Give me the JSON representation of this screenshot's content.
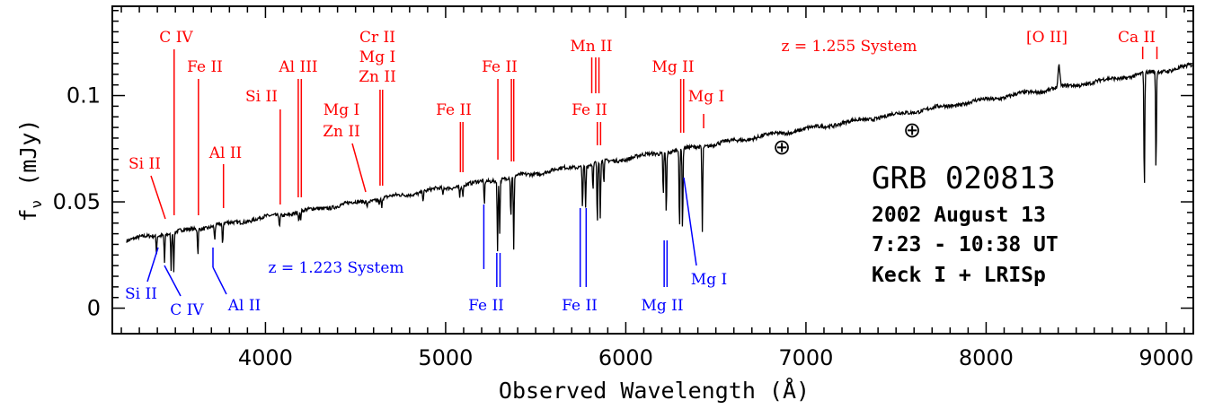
{
  "chart_data": {
    "type": "line",
    "xlabel": "Observed Wavelength (Å)",
    "ylabel": "f_ν (mJy)",
    "ylabel_main": "f",
    "ylabel_sub": "ν",
    "ylabel_unit": " (mJy)",
    "xlim": [
      3150,
      9150
    ],
    "ylim": [
      -0.012,
      0.142
    ],
    "x_ticks": [
      4000,
      5000,
      6000,
      7000,
      8000,
      9000
    ],
    "y_ticks": [
      {
        "value": 0,
        "label": "0"
      },
      {
        "value": 0.05,
        "label": "0.05"
      },
      {
        "value": 0.1,
        "label": "0.1"
      }
    ],
    "grid": false,
    "continuum": [
      [
        3230,
        0.032
      ],
      [
        9150,
        0.114
      ]
    ],
    "absorption_lines": [
      {
        "x": 3395,
        "depth": 0.008
      },
      {
        "x": 3440,
        "depth": 0.013
      },
      {
        "x": 3476,
        "depth": 0.017
      },
      {
        "x": 3491,
        "depth": 0.018
      },
      {
        "x": 3625,
        "depth": 0.012
      },
      {
        "x": 3718,
        "depth": 0.007
      },
      {
        "x": 3762,
        "depth": 0.011
      },
      {
        "x": 4078,
        "depth": 0.006
      },
      {
        "x": 4185,
        "depth": 0.004
      },
      {
        "x": 4195,
        "depth": 0.004
      },
      {
        "x": 4565,
        "depth": 0.003
      },
      {
        "x": 4632,
        "depth": 0.003
      },
      {
        "x": 4645,
        "depth": 0.004
      },
      {
        "x": 4875,
        "depth": 0.004
      },
      {
        "x": 4985,
        "depth": 0.004
      },
      {
        "x": 5078,
        "depth": 0.005
      },
      {
        "x": 5095,
        "depth": 0.005
      },
      {
        "x": 5215,
        "depth": 0.011
      },
      {
        "x": 5288,
        "depth": 0.033
      },
      {
        "x": 5300,
        "depth": 0.025
      },
      {
        "x": 5362,
        "depth": 0.02
      },
      {
        "x": 5378,
        "depth": 0.035
      },
      {
        "x": 5760,
        "depth": 0.02
      },
      {
        "x": 5777,
        "depth": 0.02
      },
      {
        "x": 5818,
        "depth": 0.012
      },
      {
        "x": 5842,
        "depth": 0.03
      },
      {
        "x": 5858,
        "depth": 0.026
      },
      {
        "x": 5878,
        "depth": 0.01
      },
      {
        "x": 6208,
        "depth": 0.02
      },
      {
        "x": 6225,
        "depth": 0.03
      },
      {
        "x": 6298,
        "depth": 0.04
      },
      {
        "x": 6315,
        "depth": 0.04
      },
      {
        "x": 6425,
        "depth": 0.04
      },
      {
        "x": 8878,
        "depth": 0.058
      },
      {
        "x": 8943,
        "depth": 0.048
      }
    ],
    "emission_lines": [
      {
        "x": 8405,
        "height": 0.01
      }
    ],
    "annotations": [
      {
        "text": "GRB 020813"
      },
      {
        "text": "2002 August 13"
      },
      {
        "text": "7:23 - 10:38 UT"
      },
      {
        "text": "Keck I + LRISp"
      }
    ],
    "systems": [
      {
        "label": "z = 1.255 System",
        "color": "#ff0000"
      },
      {
        "label": "z = 1.223 System",
        "color": "#0000ff"
      }
    ],
    "red_line_labels": [
      {
        "label": "Si II",
        "wl": [
          3440
        ]
      },
      {
        "label": "C IV",
        "wl": [
          3493
        ]
      },
      {
        "label": "Fe II",
        "wl": [
          3628
        ]
      },
      {
        "label": "Al II",
        "wl": [
          3767
        ]
      },
      {
        "label": "Si II",
        "wl": [
          4082
        ]
      },
      {
        "label": "Al III",
        "wl": [
          4182,
          4199
        ]
      },
      {
        "label": "Mg I",
        "wl": [
          4568
        ]
      },
      {
        "label": "Zn II",
        "wl": [
          4568
        ]
      },
      {
        "label": "Cr II",
        "wl": [
          4636,
          4650
        ]
      },
      {
        "label": "Mg I",
        "wl": [
          4636,
          4650
        ]
      },
      {
        "label": "Zn II",
        "wl": [
          4636,
          4650
        ]
      },
      {
        "label": "Fe II",
        "wl": [
          5082,
          5096
        ]
      },
      {
        "label": "Fe II",
        "wl": [
          5290,
          5365,
          5378
        ]
      },
      {
        "label": "Mn II",
        "wl": [
          5811,
          5833,
          5851
        ]
      },
      {
        "label": "Fe II",
        "wl": [
          5842,
          5860
        ]
      },
      {
        "label": "Mg II",
        "wl": [
          6305,
          6321
        ]
      },
      {
        "label": "Mg I",
        "wl": [
          6432
        ]
      },
      {
        "label": "[O II]",
        "wl": [
          8405
        ]
      },
      {
        "label": "Ca II",
        "wl": [
          8869,
          8948
        ]
      }
    ],
    "blue_line_labels": [
      {
        "label": "Si II",
        "wl": [
          3393
        ]
      },
      {
        "label": "C IV",
        "wl": [
          3441
        ]
      },
      {
        "label": "Al II",
        "wl": [
          3714
        ]
      },
      {
        "label": "Fe II",
        "wl": [
          5212,
          5284,
          5302
        ]
      },
      {
        "label": "Fe II",
        "wl": [
          5747,
          5780
        ]
      },
      {
        "label": "Mg II",
        "wl": [
          6213,
          6229
        ]
      },
      {
        "label": "Mg I",
        "wl": [
          6342
        ]
      }
    ],
    "telluric_markers": [
      {
        "symbol": "⊕",
        "wl": 6880
      },
      {
        "symbol": "⊕",
        "wl": 7610
      }
    ],
    "colors": {
      "spectrum": "#000000",
      "red": "#ff0000",
      "blue": "#0000ff",
      "axis": "#000000"
    }
  }
}
